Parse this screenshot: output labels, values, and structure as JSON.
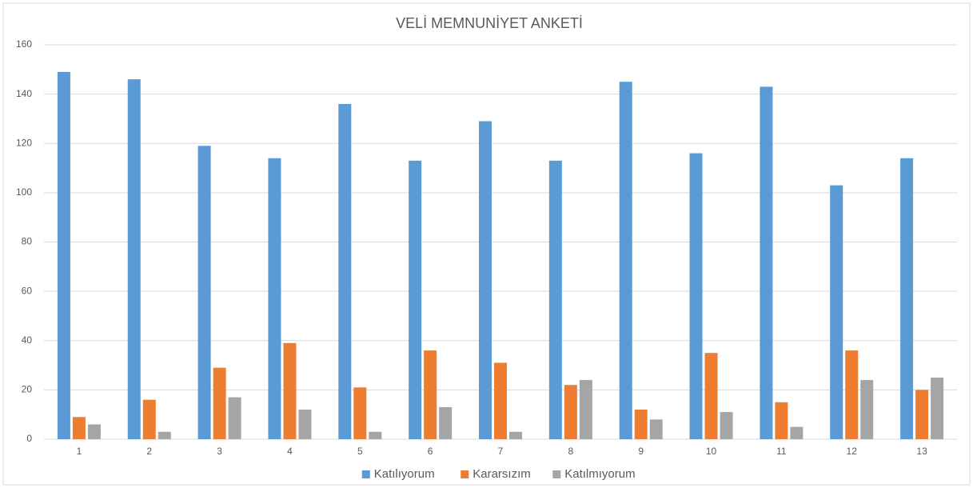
{
  "chart_data": {
    "type": "bar",
    "title": "VELİ MEMNUNİYET ANKETİ",
    "categories": [
      "1",
      "2",
      "3",
      "4",
      "5",
      "6",
      "7",
      "8",
      "9",
      "10",
      "11",
      "12",
      "13"
    ],
    "series": [
      {
        "name": "Katılıyorum",
        "color": "#5b9bd5",
        "values": [
          149,
          146,
          119,
          114,
          136,
          113,
          129,
          113,
          145,
          116,
          143,
          103,
          114
        ]
      },
      {
        "name": "Kararsızım",
        "color": "#ed7d31",
        "values": [
          9,
          16,
          29,
          39,
          21,
          36,
          31,
          22,
          12,
          35,
          15,
          36,
          20
        ]
      },
      {
        "name": "Katılmıyorum",
        "color": "#a5a5a5",
        "values": [
          6,
          3,
          17,
          12,
          3,
          13,
          3,
          24,
          8,
          11,
          5,
          24,
          25
        ]
      }
    ],
    "ylim": [
      0,
      160
    ],
    "yticks": [
      0,
      20,
      40,
      60,
      80,
      100,
      120,
      140,
      160
    ],
    "grid": true,
    "legend": "bottom"
  }
}
